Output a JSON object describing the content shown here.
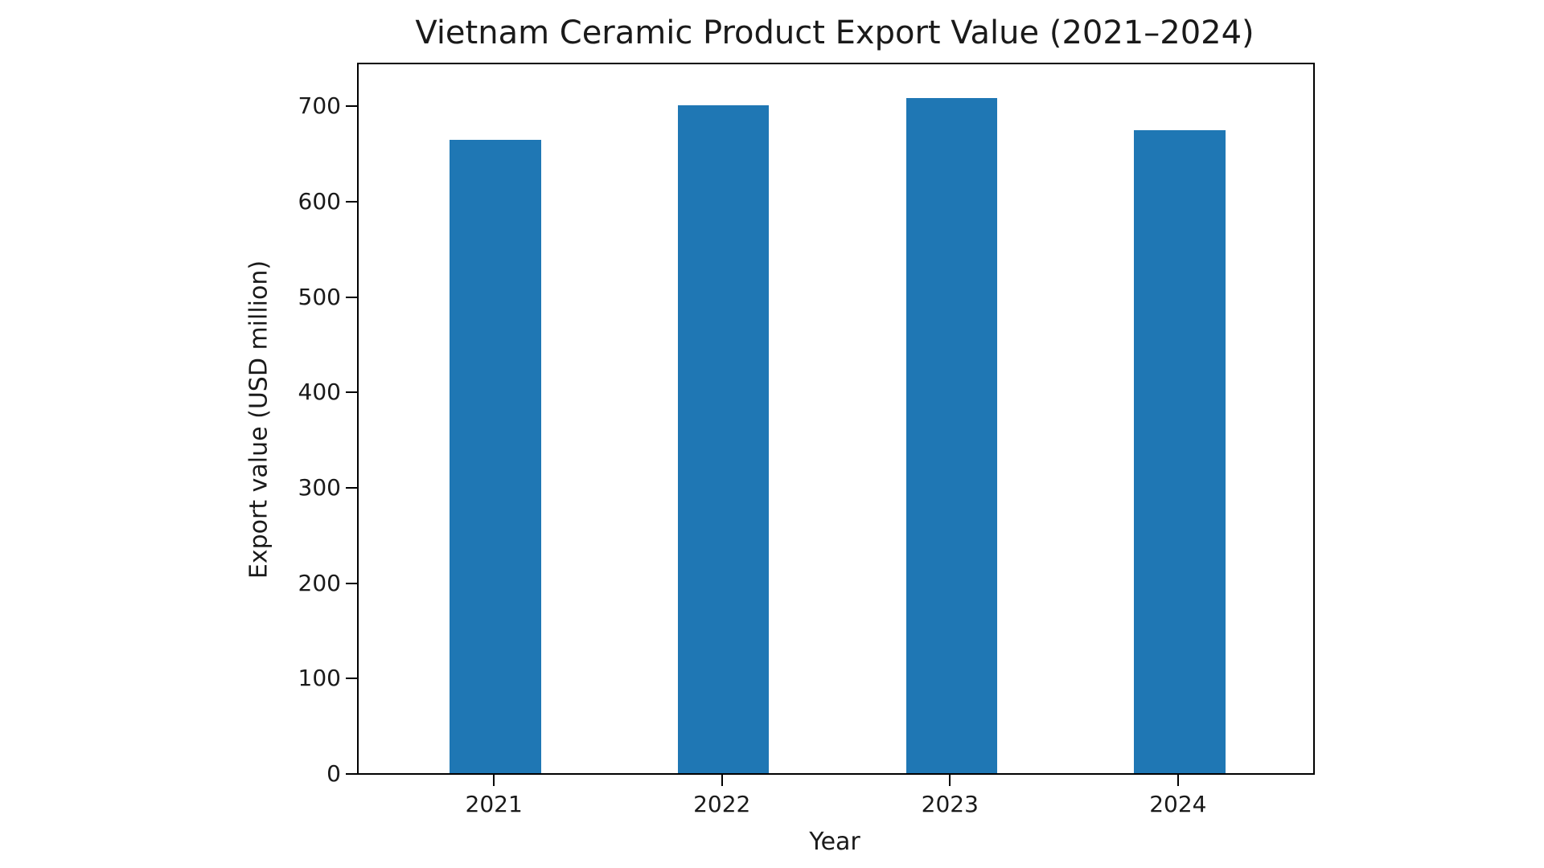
{
  "chart_data": {
    "type": "bar",
    "title": "Vietnam Ceramic Product Export Value (2021–2024)",
    "xlabel": "Year",
    "ylabel": "Export value (USD million)",
    "categories": [
      "2021",
      "2022",
      "2023",
      "2024"
    ],
    "values": [
      664,
      700,
      708,
      674
    ],
    "ylim": [
      0,
      745
    ],
    "yticks": [
      "0",
      "100",
      "200",
      "300",
      "400",
      "500",
      "600",
      "700"
    ],
    "grid": false,
    "legend": null,
    "bar_color": "#1f77b4"
  }
}
